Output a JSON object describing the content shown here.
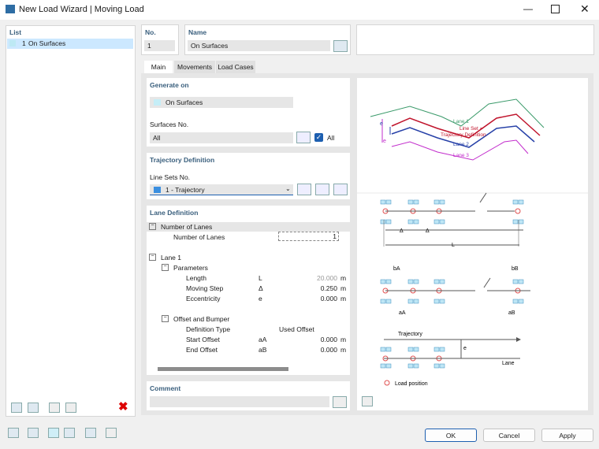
{
  "window": {
    "title": "New Load Wizard | Moving Load"
  },
  "list": {
    "title": "List",
    "items": [
      {
        "no": "1",
        "name": "On Surfaces"
      }
    ]
  },
  "header": {
    "no_label": "No.",
    "no": "1",
    "name_label": "Name",
    "name": "On Surfaces"
  },
  "tabs": [
    "Main",
    "Movements",
    "Load Cases"
  ],
  "generate_on": {
    "title": "Generate on",
    "type": "On Surfaces",
    "surfaces_label": "Surfaces No.",
    "surfaces": "All",
    "all_label": "All"
  },
  "trajectory": {
    "title": "Trajectory Definition",
    "line_sets_label": "Line Sets No.",
    "line_sets": "1 - Trajectory"
  },
  "lane_definition": {
    "title": "Lane Definition",
    "rows": [
      {
        "label": "Number of Lanes"
      },
      {
        "label": "Number of Lanes",
        "value": "1"
      },
      {
        "label": "Lane 1"
      },
      {
        "label": "Parameters"
      },
      {
        "label": "Length",
        "symbol": "L",
        "value": "20.000",
        "unit": "m"
      },
      {
        "label": "Moving Step",
        "symbol": "Δ",
        "value": "0.250",
        "unit": "m"
      },
      {
        "label": "Eccentricity",
        "symbol": "e",
        "value": "0.000",
        "unit": "m"
      },
      {
        "label": "Offset and Bumper"
      },
      {
        "label": "Definition Type",
        "value": "Used Offset"
      },
      {
        "label": "Start Offset",
        "symbol": "aA",
        "value": "0.000",
        "unit": "m"
      },
      {
        "label": "End Offset",
        "symbol": "aB",
        "value": "0.000",
        "unit": "m"
      }
    ]
  },
  "comment": {
    "title": "Comment"
  },
  "diagram": {
    "lane_1": "Lane 1",
    "line_set": "Line Set =",
    "trajectory_definition": "Trajectory Definition",
    "lane_2": "Lane 2",
    "lane_3": "Lane 3",
    "e": "e",
    "delta": "Δ",
    "length": "L",
    "b_a": "bA",
    "b_b": "bB",
    "a_a": "aA",
    "a_b": "aB",
    "trajectory": "Trajectory",
    "lane": "Lane",
    "legend": "Load position"
  },
  "buttons": [
    "OK",
    "Cancel",
    "Apply"
  ]
}
